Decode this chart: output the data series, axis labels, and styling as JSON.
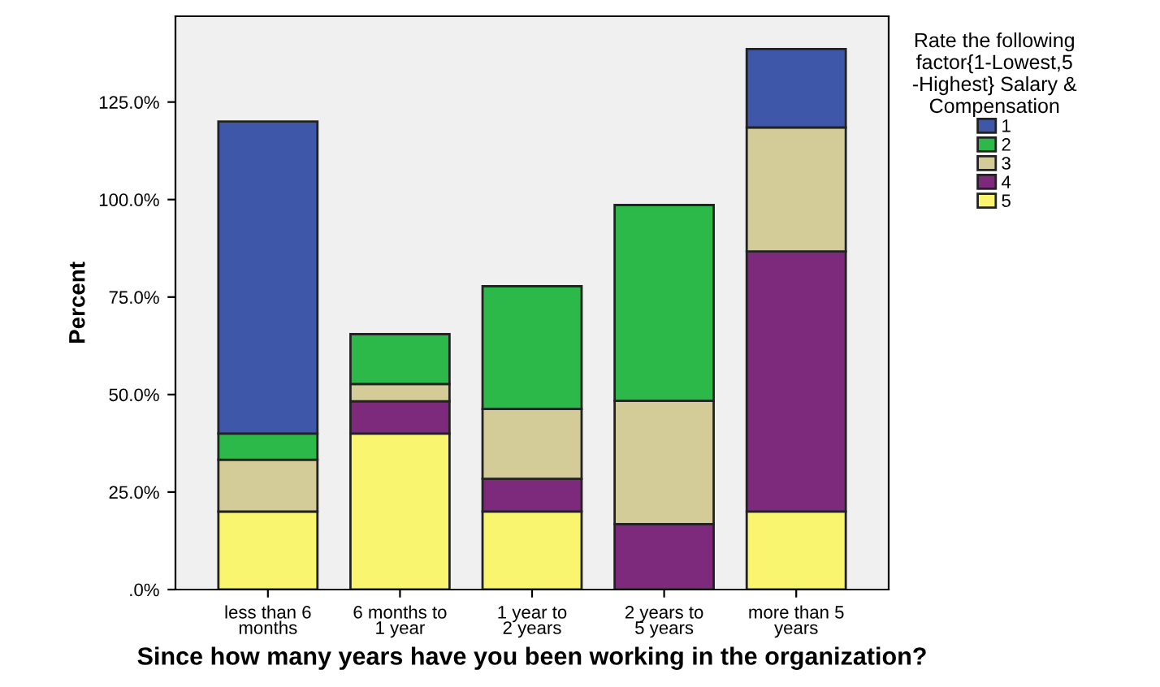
{
  "chart_data": {
    "type": "bar",
    "stacked": true,
    "xlabel": "Since how many years have you been working in the organization?",
    "ylabel": "Percent",
    "legend_title": "Rate the following factor{1-Lowest,5 -Highest} Salary & Compensation",
    "categories": [
      "less than 6 months",
      "6 months to 1 year",
      "1 year to 2 years",
      "2 years to 5 years",
      "more than 5 years"
    ],
    "series": [
      {
        "name": "5",
        "color": "#f9f56f",
        "values": [
          20.0,
          40.0,
          20.0,
          null,
          20.0
        ]
      },
      {
        "name": "4",
        "color": "#7d2a7c",
        "values": [
          null,
          8.3,
          8.4,
          16.8,
          66.7
        ]
      },
      {
        "name": "3",
        "color": "#d3cc98",
        "values": [
          13.3,
          4.4,
          17.9,
          31.6,
          31.8
        ]
      },
      {
        "name": "2",
        "color": "#2db84a",
        "values": [
          6.7,
          12.8,
          31.5,
          50.2,
          null
        ]
      },
      {
        "name": "1",
        "color": "#3f57a8",
        "values": [
          80.0,
          null,
          null,
          null,
          20.1
        ]
      }
    ],
    "ylim": [
      0,
      147
    ],
    "yticks": [
      {
        "value": 0,
        "label": ".0%"
      },
      {
        "value": 25,
        "label": "25.0%"
      },
      {
        "value": 50,
        "label": "50.0%"
      },
      {
        "value": 75,
        "label": "75.0%"
      },
      {
        "value": 100,
        "label": "100.0%"
      },
      {
        "value": 125,
        "label": "125.0%"
      }
    ],
    "grid": false,
    "legend": "right"
  }
}
